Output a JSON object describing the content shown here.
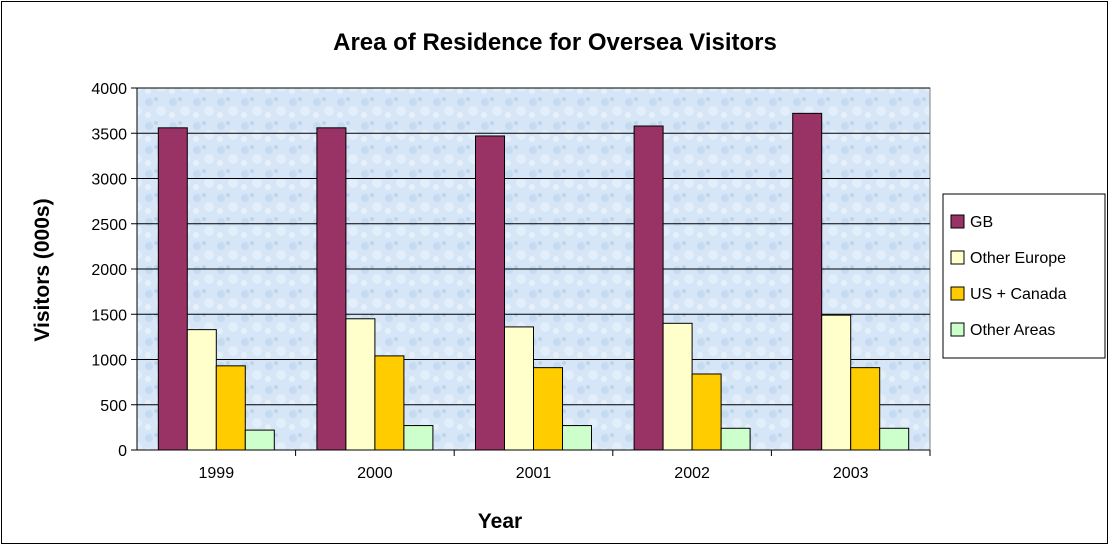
{
  "chart_data": {
    "type": "bar",
    "title": "Area of Residence for Oversea Visitors",
    "xlabel": "Year",
    "ylabel": "Visitors (000s)",
    "categories": [
      "1999",
      "2000",
      "2001",
      "2002",
      "2003"
    ],
    "ylim": [
      0,
      4000
    ],
    "yticks": [
      0,
      500,
      1000,
      1500,
      2000,
      2500,
      3000,
      3500,
      4000
    ],
    "grid": true,
    "legend_position": "right",
    "series": [
      {
        "name": "GB",
        "color": "#993366",
        "values": [
          3560,
          3560,
          3470,
          3580,
          3720
        ]
      },
      {
        "name": "Other Europe",
        "color": "#FFFFCC",
        "values": [
          1330,
          1450,
          1360,
          1400,
          1490
        ]
      },
      {
        "name": "US + Canada",
        "color": "#FFCC00",
        "values": [
          930,
          1040,
          910,
          840,
          910
        ]
      },
      {
        "name": "Other Areas",
        "color": "#CCFFCC",
        "values": [
          220,
          270,
          270,
          240,
          240
        ]
      }
    ]
  }
}
